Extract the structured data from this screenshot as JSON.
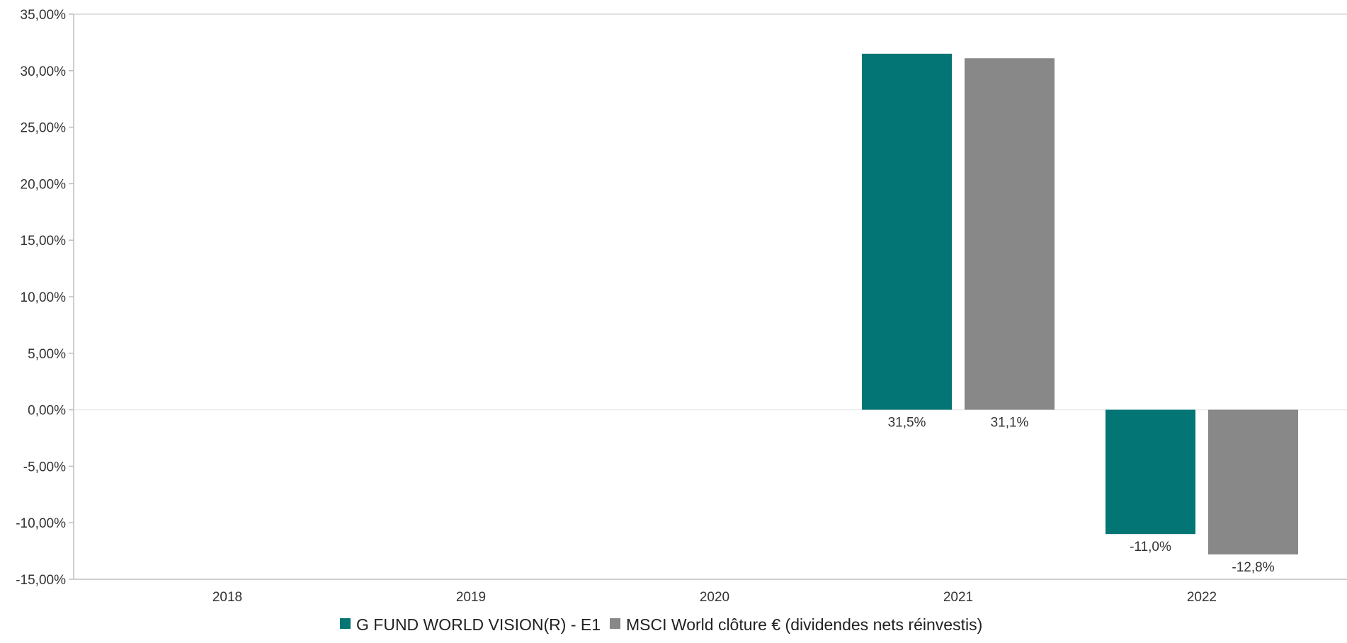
{
  "chart_data": {
    "type": "bar",
    "categories": [
      "2018",
      "2019",
      "2020",
      "2021",
      "2022"
    ],
    "series": [
      {
        "name": "G FUND WORLD VISION(R) - E1",
        "color": "#037575",
        "values": [
          null,
          null,
          null,
          31.5,
          -11.0
        ],
        "labels": [
          "",
          "",
          "",
          "31,5%",
          "-11,0%"
        ]
      },
      {
        "name": "MSCI World clôture € (dividendes nets réinvestis)",
        "color": "#888888",
        "values": [
          null,
          null,
          null,
          31.1,
          -12.8
        ],
        "labels": [
          "",
          "",
          "",
          "31,1%",
          "-12,8%"
        ]
      }
    ],
    "ylim": [
      -15,
      35
    ],
    "yticks": [
      35,
      30,
      25,
      20,
      15,
      10,
      5,
      0,
      -5,
      -10,
      -15
    ],
    "ytick_labels": [
      "35,00%",
      "30,00%",
      "25,00%",
      "20,00%",
      "15,00%",
      "10,00%",
      "5,00%",
      "0,00%",
      "-5,00%",
      "-10,00%",
      "-15,00%"
    ],
    "legend_position": "bottom",
    "grid": false
  }
}
